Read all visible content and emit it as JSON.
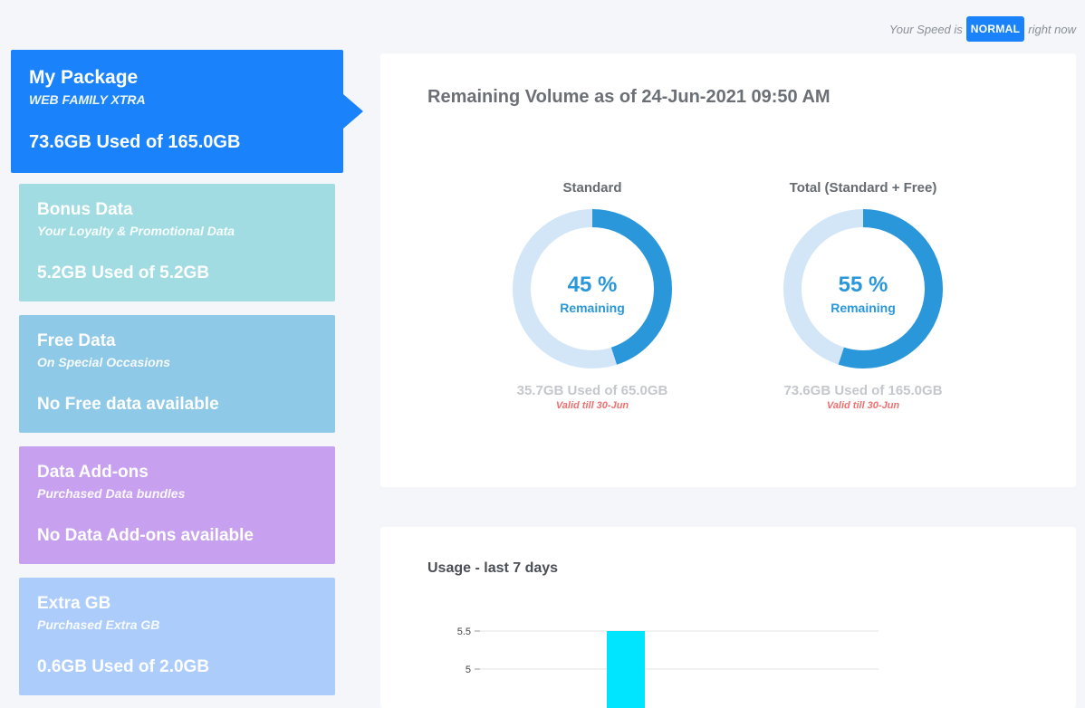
{
  "speed": {
    "prefix": "Your Speed is",
    "status": "NORMAL",
    "suffix": "right now",
    "status_color": "#1a82fb"
  },
  "cards": {
    "package": {
      "title": "My Package",
      "subtitle": "WEB FAMILY XTRA",
      "usage": "73.6GB Used of 165.0GB",
      "color": "#1a82fb"
    },
    "bonus": {
      "title": "Bonus Data",
      "subtitle": "Your Loyalty & Promotional Data",
      "usage": "5.2GB Used of 5.2GB",
      "color": "#a1dce2"
    },
    "free": {
      "title": "Free Data",
      "subtitle": "On Special Occasions",
      "usage": "No Free data available",
      "color": "#8fc9e8"
    },
    "addons": {
      "title": "Data Add-ons",
      "subtitle": "Purchased Data bundles",
      "usage": "No Data Add-ons available",
      "color": "#c7a1ef"
    },
    "extra": {
      "title": "Extra GB",
      "subtitle": "Purchased Extra GB",
      "usage": "0.6GB Used of 2.0GB",
      "color": "#acccfb"
    }
  },
  "volume": {
    "heading": "Remaining Volume as of 24-Jun-2021 09:50 AM",
    "gauges": [
      {
        "label": "Standard",
        "percent_text": "45 %",
        "remaining_fraction": 0.45,
        "remaining_label": "Remaining",
        "used": "35.7GB Used of 65.0GB",
        "valid": "Valid till 30-Jun"
      },
      {
        "label": "Total (Standard + Free)",
        "percent_text": "55 %",
        "remaining_fraction": 0.55,
        "remaining_label": "Remaining",
        "used": "73.6GB Used of 165.0GB",
        "valid": "Valid till 30-Jun"
      }
    ],
    "gauge_color": "#2b97db",
    "gauge_track_color": "#d2e6f7"
  },
  "usage": {
    "heading": "Usage - last 7 days",
    "chart_data": {
      "type": "bar",
      "y_ticks": [
        "5.5",
        "5"
      ],
      "y_tick_values": [
        5.5,
        5
      ],
      "visible_bar_count": 1,
      "bar_color": "#00e5ff"
    }
  }
}
